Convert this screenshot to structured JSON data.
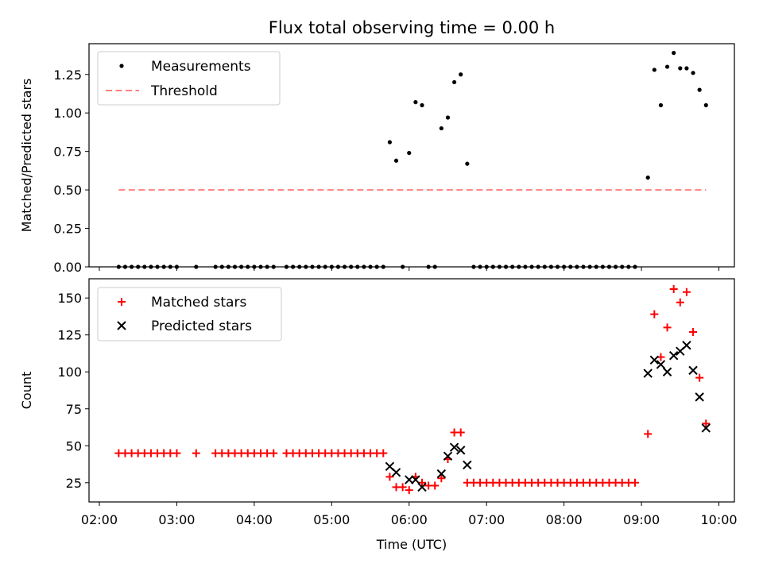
{
  "title": "Flux total observing time = 0.00 h",
  "colors": {
    "threshold": "#ff7f7f",
    "matched": "#ff0000",
    "predicted": "#000000",
    "measurement": "#000000"
  },
  "chart_data": [
    {
      "type": "scatter",
      "ylabel": "Matched/Predicted stars",
      "ylim": [
        0,
        1.45
      ],
      "yticks": [
        0.0,
        0.25,
        0.5,
        0.75,
        1.0,
        1.25
      ],
      "ytick_labels": [
        "0.00",
        "0.25",
        "0.50",
        "0.75",
        "1.00",
        "1.25"
      ],
      "legend": {
        "position": "top-left",
        "entries": [
          "Measurements",
          "Threshold"
        ]
      },
      "threshold": {
        "name": "Threshold",
        "value": 0.5,
        "x_start": "02:15",
        "x_end": "09:50"
      },
      "series": [
        {
          "name": "Measurements",
          "points": [
            [
              "02:15",
              0
            ],
            [
              "02:20",
              0
            ],
            [
              "02:25",
              0
            ],
            [
              "02:30",
              0
            ],
            [
              "02:35",
              0
            ],
            [
              "02:40",
              0
            ],
            [
              "02:45",
              0
            ],
            [
              "02:50",
              0
            ],
            [
              "02:55",
              0
            ],
            [
              "03:00",
              0
            ],
            [
              "03:15",
              0
            ],
            [
              "03:30",
              0
            ],
            [
              "03:35",
              0
            ],
            [
              "03:40",
              0
            ],
            [
              "03:45",
              0
            ],
            [
              "03:50",
              0
            ],
            [
              "03:55",
              0
            ],
            [
              "04:00",
              0
            ],
            [
              "04:05",
              0
            ],
            [
              "04:10",
              0
            ],
            [
              "04:15",
              0
            ],
            [
              "04:25",
              0
            ],
            [
              "04:30",
              0
            ],
            [
              "04:35",
              0
            ],
            [
              "04:40",
              0
            ],
            [
              "04:45",
              0
            ],
            [
              "04:50",
              0
            ],
            [
              "04:55",
              0
            ],
            [
              "05:00",
              0
            ],
            [
              "05:05",
              0
            ],
            [
              "05:10",
              0
            ],
            [
              "05:15",
              0
            ],
            [
              "05:20",
              0
            ],
            [
              "05:25",
              0
            ],
            [
              "05:30",
              0
            ],
            [
              "05:35",
              0
            ],
            [
              "05:40",
              0
            ],
            [
              "05:45",
              0.81
            ],
            [
              "05:50",
              0.69
            ],
            [
              "05:55",
              0.0
            ],
            [
              "06:00",
              0.74
            ],
            [
              "06:05",
              1.07
            ],
            [
              "06:10",
              1.05
            ],
            [
              "06:15",
              0.0
            ],
            [
              "06:20",
              0.0
            ],
            [
              "06:25",
              0.9
            ],
            [
              "06:30",
              0.97
            ],
            [
              "06:35",
              1.2
            ],
            [
              "06:40",
              1.25
            ],
            [
              "06:45",
              0.67
            ],
            [
              "06:50",
              0
            ],
            [
              "06:55",
              0
            ],
            [
              "07:00",
              0
            ],
            [
              "07:05",
              0
            ],
            [
              "07:10",
              0
            ],
            [
              "07:15",
              0
            ],
            [
              "07:20",
              0
            ],
            [
              "07:25",
              0
            ],
            [
              "07:30",
              0
            ],
            [
              "07:35",
              0
            ],
            [
              "07:40",
              0
            ],
            [
              "07:45",
              0
            ],
            [
              "07:50",
              0
            ],
            [
              "07:55",
              0
            ],
            [
              "08:00",
              0
            ],
            [
              "08:05",
              0
            ],
            [
              "08:10",
              0
            ],
            [
              "08:15",
              0
            ],
            [
              "08:20",
              0
            ],
            [
              "08:25",
              0
            ],
            [
              "08:30",
              0
            ],
            [
              "08:35",
              0
            ],
            [
              "08:40",
              0
            ],
            [
              "08:45",
              0
            ],
            [
              "08:50",
              0
            ],
            [
              "08:55",
              0
            ],
            [
              "09:05",
              0.58
            ],
            [
              "09:10",
              1.28
            ],
            [
              "09:15",
              1.05
            ],
            [
              "09:20",
              1.3
            ],
            [
              "09:25",
              1.39
            ],
            [
              "09:30",
              1.29
            ],
            [
              "09:35",
              1.29
            ],
            [
              "09:40",
              1.26
            ],
            [
              "09:45",
              1.15
            ],
            [
              "09:50",
              1.05
            ]
          ]
        }
      ]
    },
    {
      "type": "scatter",
      "xlabel": "Time (UTC)",
      "ylabel": "Count",
      "ylim": [
        12,
        163
      ],
      "yticks": [
        25,
        50,
        75,
        100,
        125,
        150
      ],
      "ytick_labels": [
        "25",
        "50",
        "75",
        "100",
        "125",
        "150"
      ],
      "xlim": [
        "01:52",
        "10:12"
      ],
      "xticks": [
        "02:00",
        "03:00",
        "04:00",
        "05:00",
        "06:00",
        "07:00",
        "08:00",
        "09:00",
        "10:00"
      ],
      "xtick_labels": [
        "02:00",
        "03:00",
        "04:00",
        "05:00",
        "06:00",
        "07:00",
        "08:00",
        "09:00",
        "10:00"
      ],
      "legend": {
        "position": "top-left",
        "entries": [
          "Matched stars",
          "Predicted stars"
        ]
      },
      "series": [
        {
          "name": "Matched stars",
          "points": [
            [
              "02:15",
              45
            ],
            [
              "02:20",
              45
            ],
            [
              "02:25",
              45
            ],
            [
              "02:30",
              45
            ],
            [
              "02:35",
              45
            ],
            [
              "02:40",
              45
            ],
            [
              "02:45",
              45
            ],
            [
              "02:50",
              45
            ],
            [
              "02:55",
              45
            ],
            [
              "03:00",
              45
            ],
            [
              "03:15",
              45
            ],
            [
              "03:30",
              45
            ],
            [
              "03:35",
              45
            ],
            [
              "03:40",
              45
            ],
            [
              "03:45",
              45
            ],
            [
              "03:50",
              45
            ],
            [
              "03:55",
              45
            ],
            [
              "04:00",
              45
            ],
            [
              "04:05",
              45
            ],
            [
              "04:10",
              45
            ],
            [
              "04:15",
              45
            ],
            [
              "04:25",
              45
            ],
            [
              "04:30",
              45
            ],
            [
              "04:35",
              45
            ],
            [
              "04:40",
              45
            ],
            [
              "04:45",
              45
            ],
            [
              "04:50",
              45
            ],
            [
              "04:55",
              45
            ],
            [
              "05:00",
              45
            ],
            [
              "05:05",
              45
            ],
            [
              "05:10",
              45
            ],
            [
              "05:15",
              45
            ],
            [
              "05:20",
              45
            ],
            [
              "05:25",
              45
            ],
            [
              "05:30",
              45
            ],
            [
              "05:35",
              45
            ],
            [
              "05:40",
              45
            ],
            [
              "05:45",
              29
            ],
            [
              "05:50",
              22
            ],
            [
              "05:55",
              22
            ],
            [
              "06:00",
              20
            ],
            [
              "06:05",
              29
            ],
            [
              "06:10",
              25
            ],
            [
              "06:15",
              23
            ],
            [
              "06:20",
              23
            ],
            [
              "06:25",
              28
            ],
            [
              "06:30",
              41
            ],
            [
              "06:35",
              59
            ],
            [
              "06:40",
              59
            ],
            [
              "06:45",
              25
            ],
            [
              "06:50",
              25
            ],
            [
              "06:55",
              25
            ],
            [
              "07:00",
              25
            ],
            [
              "07:05",
              25
            ],
            [
              "07:10",
              25
            ],
            [
              "07:15",
              25
            ],
            [
              "07:20",
              25
            ],
            [
              "07:25",
              25
            ],
            [
              "07:30",
              25
            ],
            [
              "07:35",
              25
            ],
            [
              "07:40",
              25
            ],
            [
              "07:45",
              25
            ],
            [
              "07:50",
              25
            ],
            [
              "07:55",
              25
            ],
            [
              "08:00",
              25
            ],
            [
              "08:05",
              25
            ],
            [
              "08:10",
              25
            ],
            [
              "08:15",
              25
            ],
            [
              "08:20",
              25
            ],
            [
              "08:25",
              25
            ],
            [
              "08:30",
              25
            ],
            [
              "08:35",
              25
            ],
            [
              "08:40",
              25
            ],
            [
              "08:45",
              25
            ],
            [
              "08:50",
              25
            ],
            [
              "08:55",
              25
            ],
            [
              "09:05",
              58
            ],
            [
              "09:10",
              139
            ],
            [
              "09:15",
              110
            ],
            [
              "09:20",
              130
            ],
            [
              "09:25",
              156
            ],
            [
              "09:30",
              147
            ],
            [
              "09:35",
              154
            ],
            [
              "09:40",
              127
            ],
            [
              "09:45",
              96
            ],
            [
              "09:50",
              65
            ]
          ]
        },
        {
          "name": "Predicted stars",
          "points": [
            [
              "05:45",
              36
            ],
            [
              "05:50",
              32
            ],
            [
              "06:00",
              27
            ],
            [
              "06:05",
              27
            ],
            [
              "06:10",
              22
            ],
            [
              "06:25",
              31
            ],
            [
              "06:30",
              43
            ],
            [
              "06:35",
              49
            ],
            [
              "06:40",
              47
            ],
            [
              "06:45",
              37
            ],
            [
              "09:05",
              99
            ],
            [
              "09:10",
              108
            ],
            [
              "09:15",
              105
            ],
            [
              "09:20",
              100
            ],
            [
              "09:25",
              111
            ],
            [
              "09:30",
              114
            ],
            [
              "09:35",
              118
            ],
            [
              "09:40",
              101
            ],
            [
              "09:45",
              83
            ],
            [
              "09:50",
              62
            ]
          ]
        }
      ]
    }
  ]
}
